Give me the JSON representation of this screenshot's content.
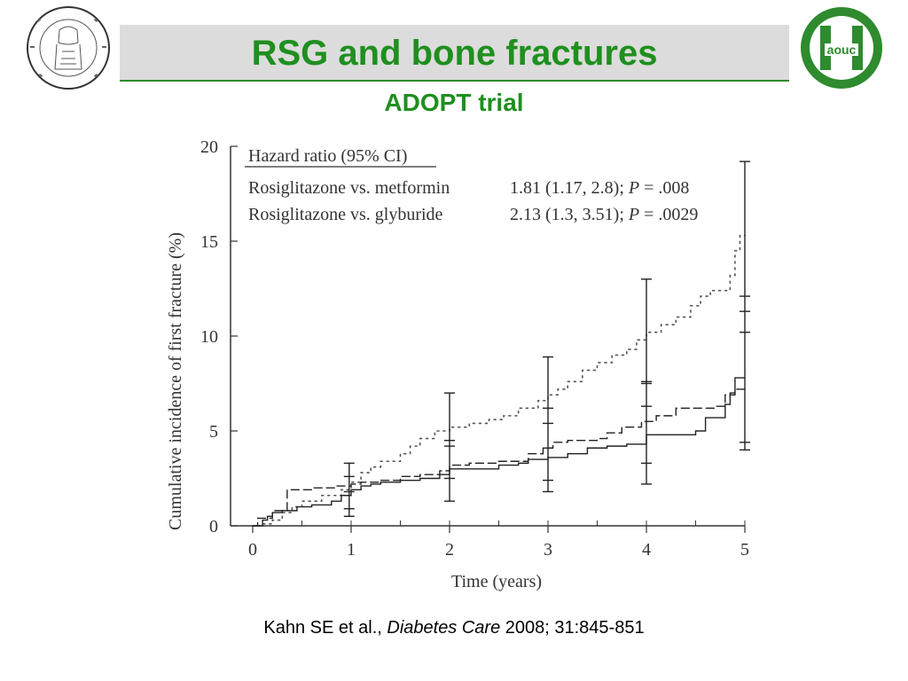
{
  "slide": {
    "title": "RSG and bone fractures",
    "subtitle": "ADOPT trial",
    "citation_authors": "Kahn SE et al., ",
    "citation_journal": "Diabetes Care",
    "citation_rest": " 2008; 31:845-851",
    "logo_right_text": "aouc",
    "colors": {
      "title_green": "#1f8f1f",
      "title_bar": "#dcdcdc"
    }
  },
  "chart_data": {
    "type": "line",
    "xlabel": "Time (years)",
    "ylabel": "Cumulative incidence of first fracture (%)",
    "xlim": [
      0,
      5
    ],
    "ylim": [
      0,
      20
    ],
    "x_ticks": [
      0,
      1,
      2,
      3,
      4,
      5
    ],
    "y_ticks": [
      0,
      5,
      10,
      15,
      20
    ],
    "grid": false,
    "legend_title": "Hazard ratio (95% CI)",
    "legend_rows": [
      {
        "label": "Rosiglitazone vs. metformin",
        "value": "1.81 (1.17, 2.8); ",
        "p_label": "P",
        "p_value": " = .008"
      },
      {
        "label": "Rosiglitazone vs. glyburide",
        "value": "2.13 (1.3, 3.51); ",
        "p_label": "P",
        "p_value": " = .0029"
      }
    ],
    "series": [
      {
        "style": "dotted",
        "points": [
          [
            0,
            0
          ],
          [
            0.1,
            0.1
          ],
          [
            0.2,
            0.3
          ],
          [
            0.3,
            0.7
          ],
          [
            0.4,
            1.0
          ],
          [
            0.5,
            1.3
          ],
          [
            0.7,
            1.6
          ],
          [
            0.9,
            1.9
          ],
          [
            1.0,
            2.3
          ],
          [
            1.1,
            2.8
          ],
          [
            1.2,
            3.1
          ],
          [
            1.3,
            3.4
          ],
          [
            1.5,
            3.8
          ],
          [
            1.6,
            4.2
          ],
          [
            1.7,
            4.6
          ],
          [
            1.85,
            5.0
          ],
          [
            2.0,
            5.2
          ],
          [
            2.2,
            5.4
          ],
          [
            2.4,
            5.6
          ],
          [
            2.55,
            5.8
          ],
          [
            2.7,
            6.2
          ],
          [
            2.9,
            6.6
          ],
          [
            3.0,
            6.9
          ],
          [
            3.1,
            7.2
          ],
          [
            3.2,
            7.6
          ],
          [
            3.35,
            8.2
          ],
          [
            3.5,
            8.6
          ],
          [
            3.65,
            9.0
          ],
          [
            3.8,
            9.3
          ],
          [
            3.9,
            9.8
          ],
          [
            4.0,
            10.2
          ],
          [
            4.15,
            10.6
          ],
          [
            4.3,
            11.0
          ],
          [
            4.45,
            11.6
          ],
          [
            4.55,
            12.1
          ],
          [
            4.65,
            12.4
          ],
          [
            4.75,
            12.4
          ],
          [
            4.85,
            13.2
          ],
          [
            4.9,
            14.5
          ],
          [
            4.95,
            15.3
          ],
          [
            5.0,
            15.3
          ]
        ]
      },
      {
        "style": "dashed",
        "points": [
          [
            0,
            0
          ],
          [
            0.05,
            0.4
          ],
          [
            0.2,
            0.8
          ],
          [
            0.35,
            1.9
          ],
          [
            0.6,
            2.0
          ],
          [
            0.85,
            2.1
          ],
          [
            1.0,
            2.2
          ],
          [
            1.1,
            2.3
          ],
          [
            1.3,
            2.4
          ],
          [
            1.5,
            2.6
          ],
          [
            1.7,
            2.7
          ],
          [
            1.9,
            2.9
          ],
          [
            2.0,
            3.2
          ],
          [
            2.2,
            3.3
          ],
          [
            2.5,
            3.4
          ],
          [
            2.8,
            3.8
          ],
          [
            2.95,
            4.1
          ],
          [
            3.05,
            4.4
          ],
          [
            3.2,
            4.5
          ],
          [
            3.5,
            4.6
          ],
          [
            3.6,
            4.9
          ],
          [
            3.75,
            5.2
          ],
          [
            3.95,
            5.5
          ],
          [
            4.1,
            5.8
          ],
          [
            4.3,
            6.2
          ],
          [
            4.7,
            6.3
          ],
          [
            4.8,
            6.9
          ],
          [
            4.9,
            7.2
          ],
          [
            5.0,
            7.4
          ]
        ]
      },
      {
        "style": "solid",
        "points": [
          [
            0,
            0
          ],
          [
            0.1,
            0.3
          ],
          [
            0.15,
            0.5
          ],
          [
            0.2,
            0.7
          ],
          [
            0.3,
            0.8
          ],
          [
            0.45,
            1.0
          ],
          [
            0.6,
            1.1
          ],
          [
            0.8,
            1.3
          ],
          [
            0.9,
            1.6
          ],
          [
            1.0,
            1.9
          ],
          [
            1.1,
            2.1
          ],
          [
            1.2,
            2.2
          ],
          [
            1.3,
            2.3
          ],
          [
            1.5,
            2.4
          ],
          [
            1.7,
            2.5
          ],
          [
            1.9,
            2.7
          ],
          [
            2.0,
            3.0
          ],
          [
            2.2,
            3.0
          ],
          [
            2.5,
            3.2
          ],
          [
            2.7,
            3.3
          ],
          [
            2.8,
            3.5
          ],
          [
            3.0,
            3.6
          ],
          [
            3.2,
            3.8
          ],
          [
            3.4,
            4.1
          ],
          [
            3.6,
            4.2
          ],
          [
            3.8,
            4.3
          ],
          [
            4.0,
            4.8
          ],
          [
            4.5,
            5.0
          ],
          [
            4.6,
            5.7
          ],
          [
            4.8,
            6.4
          ],
          [
            4.85,
            7.0
          ],
          [
            4.9,
            7.8
          ],
          [
            5.0,
            7.8
          ]
        ]
      }
    ],
    "error_bars": [
      {
        "x": 0.98,
        "low": 0.5,
        "high": 3.3,
        "ticks": [
          0.9,
          1.8,
          2.6
        ]
      },
      {
        "x": 2.0,
        "low": 1.3,
        "high": 7.0,
        "ticks": [
          2.5,
          4.2,
          4.5
        ]
      },
      {
        "x": 3.0,
        "low": 1.8,
        "high": 8.9,
        "ticks": [
          2.4,
          4.1,
          5.4,
          6.2
        ]
      },
      {
        "x": 4.0,
        "low": 2.2,
        "high": 13.0,
        "ticks": [
          3.3,
          6.3,
          7.5,
          7.6
        ]
      },
      {
        "x": 5.0,
        "low": 4.0,
        "high": 19.2,
        "ticks": [
          4.4,
          10.2,
          11.3,
          12.1
        ]
      }
    ]
  }
}
